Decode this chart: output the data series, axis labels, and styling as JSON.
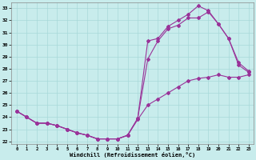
{
  "xlabel": "Windchill (Refroidissement éolien,°C)",
  "bg_color": "#c8ecec",
  "grid_color": "#a8d8d8",
  "line_color": "#993399",
  "xlim": [
    -0.5,
    23.5
  ],
  "ylim": [
    21.8,
    33.5
  ],
  "xticks": [
    0,
    1,
    2,
    3,
    4,
    5,
    6,
    7,
    8,
    9,
    10,
    11,
    12,
    13,
    14,
    15,
    16,
    17,
    18,
    19,
    20,
    21,
    22,
    23
  ],
  "yticks": [
    22,
    23,
    24,
    25,
    26,
    27,
    28,
    29,
    30,
    31,
    32,
    33
  ],
  "line1_x": [
    0,
    1,
    2,
    3,
    4,
    5,
    6,
    7,
    8,
    9,
    10,
    11,
    12,
    13,
    14,
    15,
    16,
    17,
    18,
    19,
    20,
    21,
    22,
    23
  ],
  "line1_y": [
    24.5,
    24.0,
    23.5,
    23.5,
    23.3,
    23.0,
    22.7,
    22.5,
    22.2,
    22.2,
    22.2,
    22.5,
    23.8,
    25.0,
    25.5,
    26.0,
    26.5,
    27.0,
    27.2,
    27.3,
    27.5,
    27.3,
    27.3,
    27.5
  ],
  "line2_x": [
    0,
    1,
    2,
    3,
    4,
    5,
    6,
    7,
    8,
    9,
    10,
    11,
    12,
    13,
    14,
    15,
    16,
    17,
    18,
    19,
    20,
    21,
    22,
    23
  ],
  "line2_y": [
    24.5,
    24.0,
    23.5,
    23.5,
    23.3,
    23.0,
    22.7,
    22.5,
    22.2,
    22.2,
    22.2,
    22.5,
    23.9,
    28.8,
    30.3,
    31.3,
    31.6,
    32.2,
    32.2,
    32.7,
    31.7,
    30.5,
    28.3,
    27.7
  ],
  "line3_x": [
    0,
    1,
    2,
    3,
    4,
    5,
    6,
    7,
    8,
    9,
    10,
    11,
    12,
    13,
    14,
    15,
    16,
    17,
    18,
    19,
    20,
    21,
    22,
    23
  ],
  "line3_y": [
    24.5,
    24.0,
    23.5,
    23.5,
    23.3,
    23.0,
    22.7,
    22.5,
    22.2,
    22.2,
    22.2,
    22.5,
    23.9,
    30.3,
    30.5,
    31.5,
    32.0,
    32.5,
    33.2,
    32.8,
    31.7,
    30.5,
    28.5,
    27.8
  ]
}
